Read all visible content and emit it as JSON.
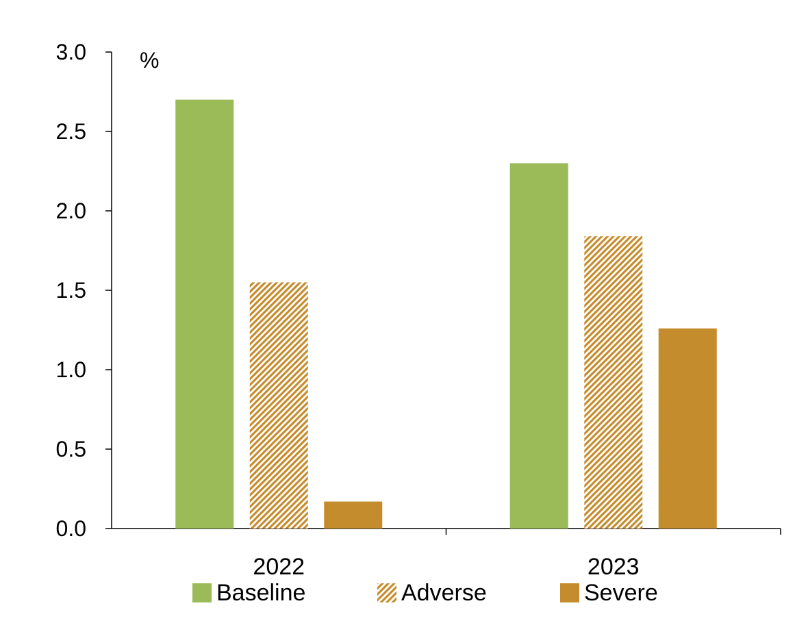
{
  "chart_data": {
    "type": "bar",
    "unit_label": "%",
    "categories": [
      "2022",
      "2023"
    ],
    "series": [
      {
        "name": "Baseline",
        "values": [
          2.7,
          2.3
        ],
        "color": "#9bbb59",
        "pattern": "solid"
      },
      {
        "name": "Adverse",
        "values": [
          1.55,
          1.84
        ],
        "color": "#c58c2e",
        "pattern": "hatched"
      },
      {
        "name": "Severe",
        "values": [
          0.17,
          1.26
        ],
        "color": "#c58c2e",
        "pattern": "solid"
      }
    ],
    "yticks": [
      "0.0",
      "0.5",
      "1.0",
      "1.5",
      "2.0",
      "2.5",
      "3.0"
    ],
    "ylim": [
      0,
      3.0
    ],
    "grid": false,
    "legend_position": "bottom"
  }
}
